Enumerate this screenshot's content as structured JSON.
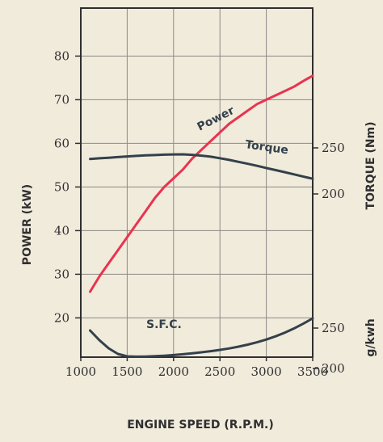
{
  "chart_data": {
    "type": "line",
    "x": [
      1100,
      1200,
      1300,
      1400,
      1500,
      1600,
      1700,
      1800,
      1900,
      2000,
      2100,
      2200,
      2300,
      2400,
      2500,
      2600,
      2700,
      2800,
      2900,
      3000,
      3100,
      3200,
      3300,
      3400,
      3500
    ],
    "xlabel": "ENGINE SPEED (R.P.M.)",
    "xticks": [
      "1000",
      "1500",
      "2000",
      "2500",
      "3000",
      "3500"
    ],
    "xlim": [
      1000,
      3500
    ],
    "axes": {
      "power": {
        "label": "POWER (kW)",
        "ticks": [
          "20",
          "30",
          "40",
          "50",
          "60",
          "70",
          "80"
        ],
        "range": [
          11,
          91
        ]
      },
      "torque": {
        "label": "TORQUE (Nm)",
        "ticks": [
          "200",
          "250"
        ]
      },
      "sfc": {
        "label": "g/kwh",
        "ticks": [
          "200",
          "250"
        ]
      }
    },
    "series": [
      {
        "name": "Power",
        "axis": "power",
        "color": "#e8344f",
        "values": [
          26,
          29.5,
          32.5,
          35.5,
          38.5,
          41.5,
          44.5,
          47.5,
          50,
          52,
          54,
          56.5,
          58.5,
          60.5,
          62.5,
          64.5,
          66,
          67.5,
          69,
          70,
          71,
          72,
          73,
          74.3,
          75.5
        ]
      },
      {
        "name": "Torque",
        "axis": "torque",
        "color": "#33414a",
        "values": [
          238,
          238.7,
          239.3,
          240,
          240.7,
          241.3,
          241.8,
          242.2,
          242.6,
          242.9,
          243,
          242.5,
          241.6,
          240.4,
          238.8,
          236.9,
          234.8,
          232.7,
          230.5,
          228.2,
          225.9,
          223.6,
          221.2,
          218.8,
          216.5
        ]
      },
      {
        "name": "S.F.C.",
        "axis": "sfc",
        "color": "#33414a",
        "values": [
          247,
          235,
          225,
          218,
          215,
          214.6,
          214.8,
          215.2,
          215.8,
          216.6,
          217.6,
          218.7,
          220,
          221.4,
          223,
          224.8,
          227,
          229.5,
          232.4,
          235.8,
          239.8,
          244.4,
          249.6,
          255.6,
          262
        ]
      }
    ],
    "grid": true
  }
}
